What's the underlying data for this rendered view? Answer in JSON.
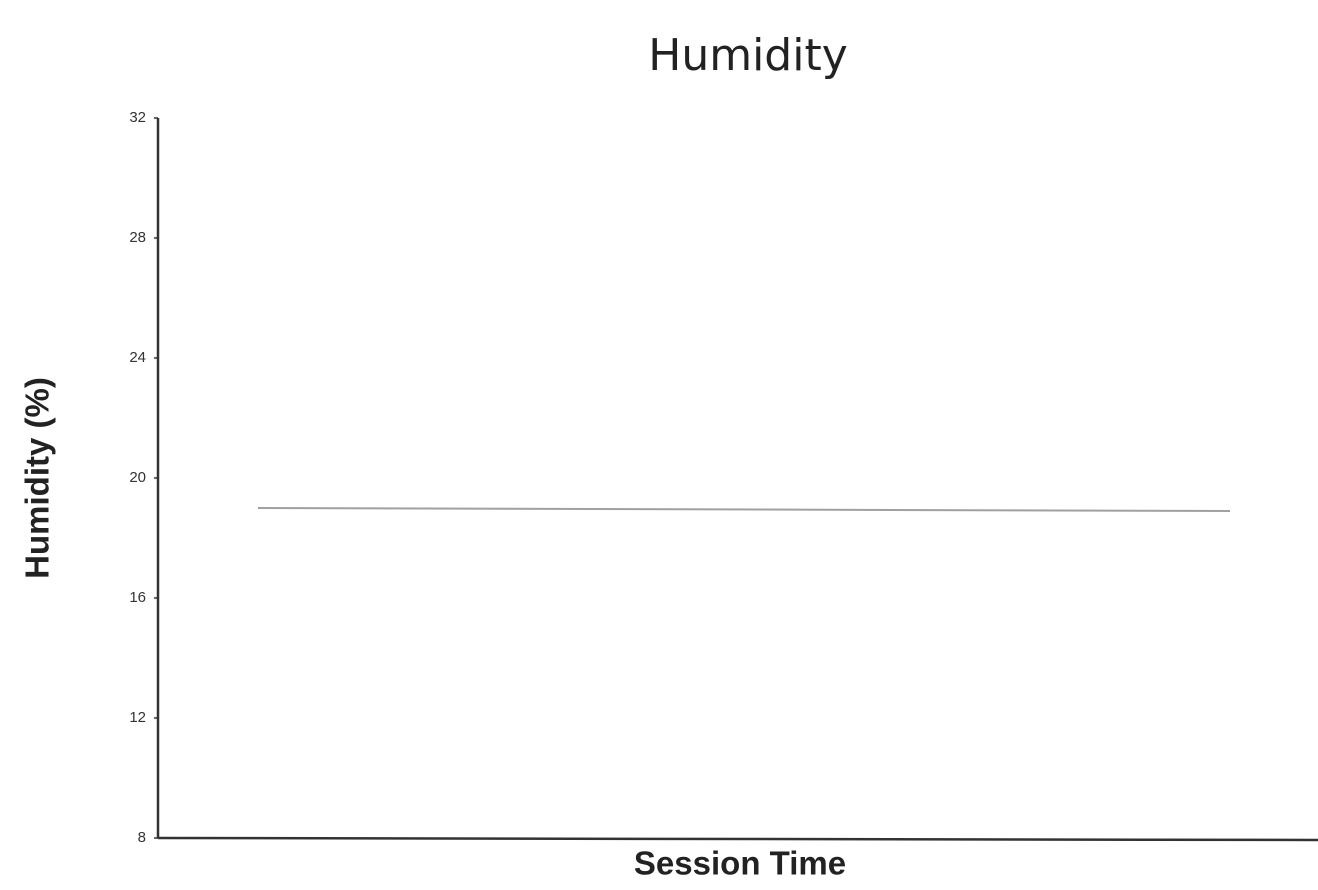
{
  "chart_data": {
    "type": "line",
    "title": "Humidity",
    "x_label": "Session Time",
    "y_label": "Humidity (%)",
    "categories": [
      null,
      null
    ],
    "series": [
      {
        "name": null,
        "color": "#a0a0a0",
        "values": [
          19.0,
          18.9
        ]
      }
    ],
    "ylim": [
      8,
      32
    ],
    "yticks": [
      8,
      12,
      16,
      20,
      24,
      28,
      32
    ],
    "grid": false
  }
}
